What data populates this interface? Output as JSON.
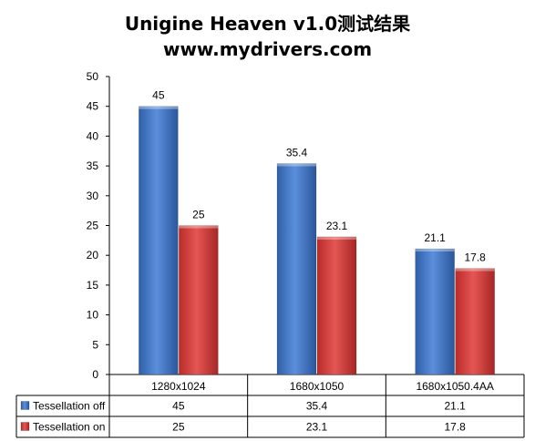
{
  "chart_data": {
    "type": "bar",
    "title": "Unigine Heaven v1.0测试结果",
    "subtitle": "www.mydrivers.com",
    "categories": [
      "1280x1024",
      "1680x1050",
      "1680x1050.4AA"
    ],
    "series": [
      {
        "name": "Tessellation off",
        "values": [
          45,
          35.4,
          21.1
        ],
        "color": "#4579C8"
      },
      {
        "name": "Tessellation on",
        "values": [
          25,
          23.1,
          17.8
        ],
        "color": "#D9403E"
      }
    ],
    "ylim": [
      0,
      50
    ],
    "yticks": [
      0,
      5,
      10,
      15,
      20,
      25,
      30,
      35,
      40,
      45,
      50
    ],
    "grid": false,
    "legend": "data-table-left",
    "data_table": true
  }
}
